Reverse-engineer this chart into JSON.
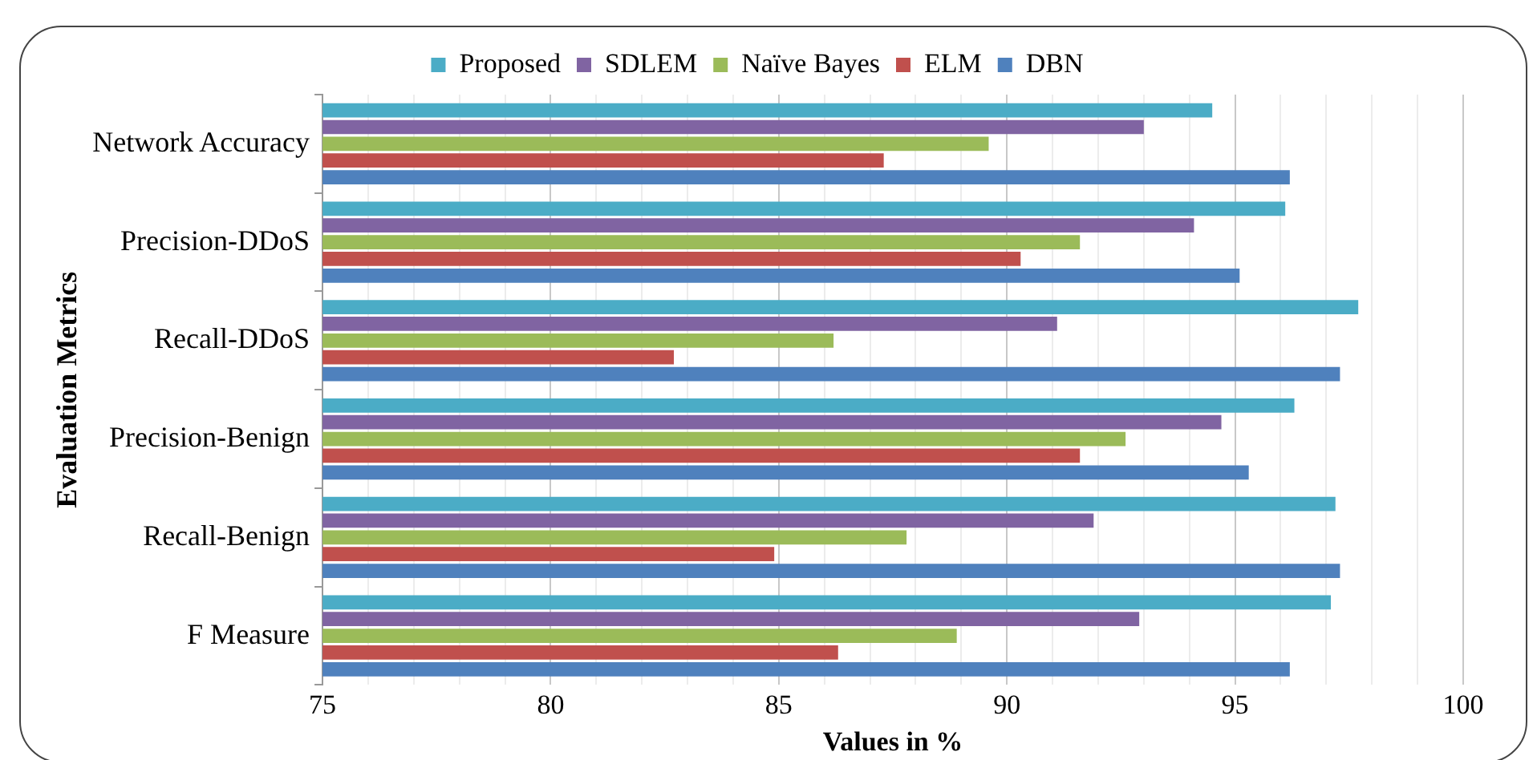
{
  "chart_data": {
    "type": "bar",
    "orientation": "horizontal",
    "xlabel": "Values in %",
    "ylabel": "Evaluation Metrics",
    "categories": [
      "Network Accuracy",
      "Precision-DDoS",
      "Recall-DDoS",
      "Precision-Benign",
      "Recall-Benign",
      "F Measure"
    ],
    "series": [
      {
        "name": "Proposed",
        "color": "#4bacc6",
        "values": [
          94.5,
          96.1,
          97.7,
          96.3,
          97.2,
          97.1
        ]
      },
      {
        "name": "SDLEM",
        "color": "#8064a2",
        "values": [
          93.0,
          94.1,
          91.1,
          94.7,
          91.9,
          92.9
        ]
      },
      {
        "name": "Naïve Bayes",
        "color": "#9bbb59",
        "values": [
          89.6,
          91.6,
          86.2,
          92.6,
          87.8,
          88.9
        ]
      },
      {
        "name": "ELM",
        "color": "#c0504d",
        "values": [
          87.3,
          90.3,
          82.7,
          91.6,
          84.9,
          86.3
        ]
      },
      {
        "name": "DBN",
        "color": "#4f81bd",
        "values": [
          96.2,
          95.1,
          97.3,
          95.3,
          97.3,
          96.2
        ]
      }
    ],
    "xlim": [
      75,
      100
    ],
    "xticks": [
      75,
      {
        "value": 76,
        "label": null
      },
      {
        "value": 77,
        "label": null
      },
      {
        "value": 78,
        "label": null
      },
      {
        "value": 79,
        "label": null
      },
      80,
      {
        "value": 81,
        "label": null
      },
      {
        "value": 82,
        "label": null
      },
      {
        "value": 83,
        "label": null
      },
      {
        "value": 84,
        "label": null
      },
      85,
      {
        "value": 86,
        "label": null
      },
      {
        "value": 87,
        "label": null
      },
      {
        "value": 88,
        "label": null
      },
      {
        "value": 89,
        "label": null
      },
      90,
      {
        "value": 91,
        "label": null
      },
      {
        "value": 92,
        "label": null
      },
      {
        "value": 93,
        "label": null
      },
      {
        "value": 94,
        "label": null
      },
      95,
      {
        "value": 96,
        "label": null
      },
      {
        "value": 97,
        "label": null
      },
      {
        "value": 98,
        "label": null
      },
      {
        "value": 99,
        "label": null
      },
      100
    ],
    "grid": "x",
    "legend": "top"
  }
}
